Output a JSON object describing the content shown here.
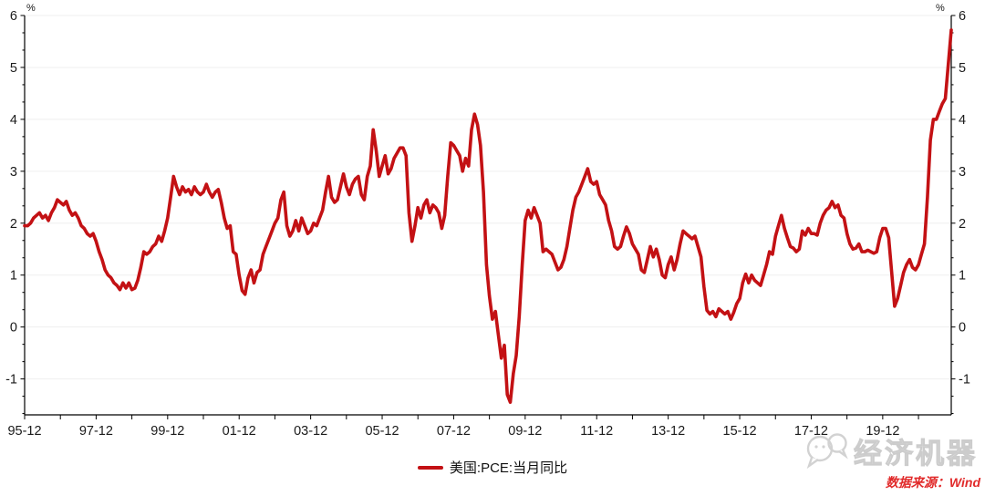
{
  "chart_data": {
    "type": "line",
    "title": "",
    "unit_label": "%",
    "grid": "horizontal",
    "legend_position": "bottom-center",
    "y_ticks": [
      6,
      5,
      4,
      3,
      2,
      1,
      0,
      -1
    ],
    "y_axis_top": 6,
    "y_axis_bottom": -1.7,
    "x_tick_labels": [
      "95-12",
      "97-12",
      "99-12",
      "01-12",
      "03-12",
      "05-12",
      "07-12",
      "09-12",
      "11-12",
      "13-12",
      "15-12",
      "17-12",
      "19-12"
    ],
    "x_start": "1995-12",
    "x_end": "2021-11",
    "frequency": "monthly",
    "series": [
      {
        "name": "美国:PCE:当月同比",
        "color": "#C31114",
        "values": [
          1.95,
          1.95,
          2.0,
          2.1,
          2.15,
          2.2,
          2.1,
          2.15,
          2.05,
          2.2,
          2.3,
          2.45,
          2.4,
          2.35,
          2.42,
          2.25,
          2.15,
          2.2,
          2.1,
          1.95,
          1.9,
          1.8,
          1.75,
          1.8,
          1.65,
          1.45,
          1.3,
          1.1,
          1.0,
          0.95,
          0.85,
          0.8,
          0.72,
          0.85,
          0.75,
          0.85,
          0.72,
          0.75,
          0.9,
          1.15,
          1.45,
          1.4,
          1.45,
          1.55,
          1.6,
          1.75,
          1.65,
          1.85,
          2.1,
          2.5,
          2.9,
          2.7,
          2.55,
          2.7,
          2.6,
          2.65,
          2.55,
          2.7,
          2.6,
          2.55,
          2.6,
          2.75,
          2.6,
          2.5,
          2.6,
          2.65,
          2.4,
          2.1,
          1.9,
          1.95,
          1.45,
          1.4,
          1.0,
          0.7,
          0.63,
          0.95,
          1.1,
          0.85,
          1.05,
          1.1,
          1.4,
          1.55,
          1.7,
          1.85,
          2.0,
          2.1,
          2.45,
          2.6,
          1.95,
          1.75,
          1.85,
          2.05,
          1.85,
          2.1,
          1.95,
          1.8,
          1.85,
          2.0,
          1.95,
          2.1,
          2.25,
          2.6,
          2.9,
          2.5,
          2.4,
          2.45,
          2.7,
          2.95,
          2.7,
          2.55,
          2.75,
          2.85,
          2.9,
          2.55,
          2.45,
          2.9,
          3.1,
          3.8,
          3.4,
          2.9,
          3.1,
          3.3,
          2.95,
          3.05,
          3.25,
          3.35,
          3.45,
          3.45,
          3.3,
          2.2,
          1.65,
          1.95,
          2.3,
          2.1,
          2.35,
          2.45,
          2.2,
          2.35,
          2.3,
          2.2,
          1.9,
          2.15,
          2.9,
          3.55,
          3.5,
          3.4,
          3.3,
          3.0,
          3.25,
          3.1,
          3.8,
          4.1,
          3.9,
          3.5,
          2.6,
          1.2,
          0.6,
          0.15,
          0.3,
          -0.15,
          -0.6,
          -0.35,
          -1.3,
          -1.45,
          -0.9,
          -0.55,
          0.2,
          1.2,
          2.05,
          2.25,
          2.1,
          2.3,
          2.15,
          2.0,
          1.45,
          1.5,
          1.45,
          1.4,
          1.25,
          1.1,
          1.15,
          1.3,
          1.55,
          1.9,
          2.25,
          2.5,
          2.6,
          2.75,
          2.9,
          3.05,
          2.8,
          2.75,
          2.8,
          2.55,
          2.45,
          2.35,
          2.05,
          1.85,
          1.55,
          1.5,
          1.55,
          1.75,
          1.93,
          1.8,
          1.6,
          1.5,
          1.4,
          1.1,
          1.05,
          1.3,
          1.55,
          1.35,
          1.5,
          1.3,
          1.0,
          0.95,
          1.2,
          1.35,
          1.1,
          1.3,
          1.6,
          1.85,
          1.8,
          1.75,
          1.7,
          1.75,
          1.55,
          1.35,
          0.78,
          0.32,
          0.25,
          0.3,
          0.2,
          0.35,
          0.3,
          0.25,
          0.3,
          0.15,
          0.28,
          0.45,
          0.55,
          0.85,
          1.02,
          0.85,
          1.0,
          0.9,
          0.85,
          0.8,
          1.0,
          1.2,
          1.45,
          1.4,
          1.75,
          1.95,
          2.15,
          1.9,
          1.72,
          1.55,
          1.52,
          1.45,
          1.5,
          1.85,
          1.77,
          1.9,
          1.8,
          1.8,
          1.77,
          2.0,
          2.15,
          2.25,
          2.3,
          2.42,
          2.3,
          2.35,
          2.15,
          2.1,
          1.8,
          1.6,
          1.5,
          1.52,
          1.6,
          1.45,
          1.45,
          1.48,
          1.45,
          1.42,
          1.45,
          1.72,
          1.9,
          1.9,
          1.72,
          1.05,
          0.4,
          0.55,
          0.8,
          1.05,
          1.2,
          1.3,
          1.15,
          1.1,
          1.2,
          1.4,
          1.6,
          2.5,
          3.6,
          4.0,
          4.0,
          4.15,
          4.3,
          4.4,
          5.05,
          5.72
        ]
      }
    ]
  },
  "legend": {
    "label": "美国:PCE:当月同比"
  },
  "watermark": {
    "text": "经济机器",
    "icon": "wechat-logo-icon"
  },
  "source": {
    "text": "数据来源：Wind"
  },
  "colors": {
    "line": "#C31114",
    "source_text": "#E12B2B",
    "grid": "#EFEFEF",
    "axis": "#000000",
    "tick_label": "#1A1A1A",
    "watermark": "#D9D9D9"
  }
}
